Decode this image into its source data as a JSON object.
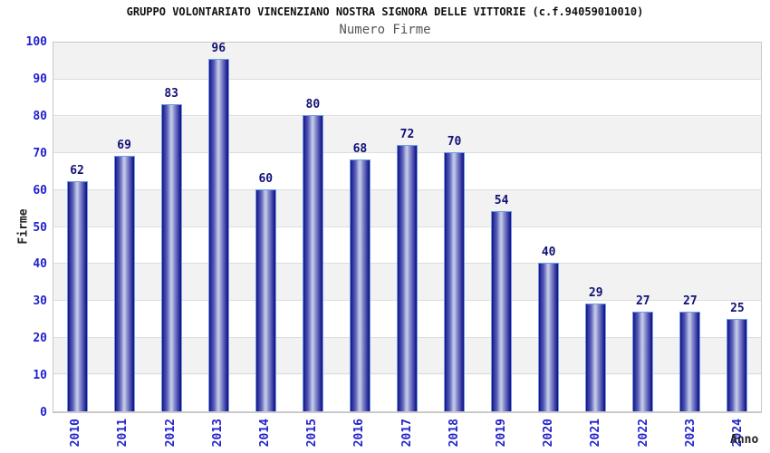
{
  "header": {
    "title": "GRUPPO VOLONTARIATO VINCENZIANO NOSTRA SIGNORA DELLE VITTORIE (c.f.94059010010)",
    "subtitle": "Numero Firme"
  },
  "chart_data": {
    "type": "bar",
    "title": "GRUPPO VOLONTARIATO VINCENZIANO NOSTRA SIGNORA DELLE VITTORIE (c.f.94059010010)",
    "subtitle": "Numero Firme",
    "xlabel": "Anno",
    "ylabel": "Firme",
    "categories": [
      "2010",
      "2011",
      "2012",
      "2013",
      "2014",
      "2015",
      "2016",
      "2017",
      "2018",
      "2019",
      "2020",
      "2021",
      "2022",
      "2023",
      "2024"
    ],
    "values": [
      62,
      69,
      83,
      96,
      60,
      80,
      68,
      72,
      70,
      54,
      40,
      29,
      27,
      27,
      25
    ],
    "ylim": [
      0,
      100
    ],
    "yticks": [
      0,
      10,
      20,
      30,
      40,
      50,
      60,
      70,
      80,
      90,
      100
    ],
    "grid": "horizontal",
    "background_bands": "alternating gray/white every 10 units",
    "legend_position": "none",
    "value_labels": "above bars"
  },
  "colors": {
    "title": "#111111",
    "subtitle": "#555555",
    "axis_blue": "#2222cc",
    "value_label": "#111177",
    "axis_title": "#222222",
    "band_gray": "#f2f2f2",
    "grid_line": "#dddddd",
    "bar_dark": "#101070",
    "bar_mid": "#2a2a9c",
    "bar_light": "#c6cbe9",
    "bar_border": "#6f9de8"
  }
}
